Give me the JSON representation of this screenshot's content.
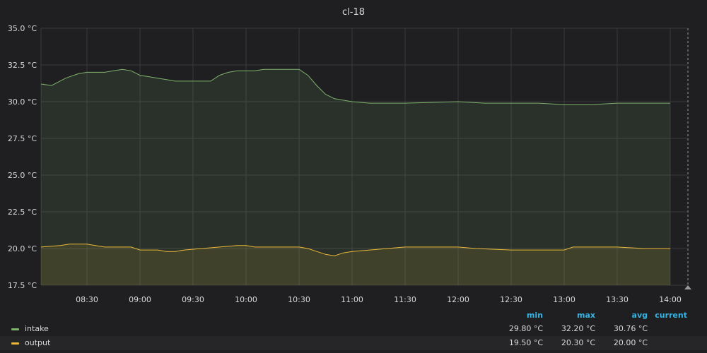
{
  "panel": {
    "title": "cl-18"
  },
  "chart_data": {
    "type": "area",
    "title": "cl-18",
    "xlabel": "",
    "ylabel": "",
    "x_range": [
      "08:04",
      "14:04"
    ],
    "ylim": [
      17.5,
      35.0
    ],
    "y_ticks": [
      "35.0 °C",
      "32.5 °C",
      "30.0 °C",
      "27.5 °C",
      "25.0 °C",
      "22.5 °C",
      "20.0 °C",
      "17.5 °C"
    ],
    "y_tick_values": [
      35.0,
      32.5,
      30.0,
      27.5,
      25.0,
      22.5,
      20.0,
      17.5
    ],
    "x_ticks": [
      "08:30",
      "09:00",
      "09:30",
      "10:00",
      "10:30",
      "11:00",
      "11:30",
      "12:00",
      "12:30",
      "13:00",
      "13:30",
      "14:00"
    ],
    "grid": true,
    "legend_position": "bottom",
    "series": [
      {
        "name": "intake",
        "color": "#7eb26d",
        "points": [
          [
            "08:04",
            31.2
          ],
          [
            "08:10",
            31.1
          ],
          [
            "08:18",
            31.6
          ],
          [
            "08:25",
            31.9
          ],
          [
            "08:30",
            32.0
          ],
          [
            "08:40",
            32.0
          ],
          [
            "08:45",
            32.1
          ],
          [
            "08:50",
            32.2
          ],
          [
            "08:55",
            32.1
          ],
          [
            "09:00",
            31.8
          ],
          [
            "09:05",
            31.7
          ],
          [
            "09:10",
            31.6
          ],
          [
            "09:15",
            31.5
          ],
          [
            "09:20",
            31.4
          ],
          [
            "09:30",
            31.4
          ],
          [
            "09:40",
            31.4
          ],
          [
            "09:45",
            31.8
          ],
          [
            "09:50",
            32.0
          ],
          [
            "09:55",
            32.1
          ],
          [
            "10:00",
            32.1
          ],
          [
            "10:05",
            32.1
          ],
          [
            "10:10",
            32.2
          ],
          [
            "10:20",
            32.2
          ],
          [
            "10:30",
            32.2
          ],
          [
            "10:35",
            31.8
          ],
          [
            "10:40",
            31.1
          ],
          [
            "10:45",
            30.5
          ],
          [
            "10:50",
            30.2
          ],
          [
            "10:55",
            30.1
          ],
          [
            "11:00",
            30.0
          ],
          [
            "11:10",
            29.9
          ],
          [
            "11:30",
            29.9
          ],
          [
            "12:00",
            30.0
          ],
          [
            "12:15",
            29.9
          ],
          [
            "12:30",
            29.9
          ],
          [
            "12:45",
            29.9
          ],
          [
            "13:00",
            29.8
          ],
          [
            "13:15",
            29.8
          ],
          [
            "13:30",
            29.9
          ],
          [
            "13:50",
            29.9
          ],
          [
            "14:00",
            29.9
          ]
        ]
      },
      {
        "name": "output",
        "color": "#eab839",
        "points": [
          [
            "08:04",
            20.1
          ],
          [
            "08:15",
            20.2
          ],
          [
            "08:20",
            20.3
          ],
          [
            "08:30",
            20.3
          ],
          [
            "08:40",
            20.1
          ],
          [
            "08:55",
            20.1
          ],
          [
            "09:00",
            19.9
          ],
          [
            "09:10",
            19.9
          ],
          [
            "09:15",
            19.8
          ],
          [
            "09:20",
            19.8
          ],
          [
            "09:25",
            19.9
          ],
          [
            "09:35",
            20.0
          ],
          [
            "09:45",
            20.1
          ],
          [
            "09:55",
            20.2
          ],
          [
            "10:00",
            20.2
          ],
          [
            "10:05",
            20.1
          ],
          [
            "10:20",
            20.1
          ],
          [
            "10:30",
            20.1
          ],
          [
            "10:35",
            20.0
          ],
          [
            "10:40",
            19.8
          ],
          [
            "10:45",
            19.6
          ],
          [
            "10:50",
            19.5
          ],
          [
            "10:55",
            19.7
          ],
          [
            "11:00",
            19.8
          ],
          [
            "11:10",
            19.9
          ],
          [
            "11:20",
            20.0
          ],
          [
            "11:30",
            20.1
          ],
          [
            "12:00",
            20.1
          ],
          [
            "12:10",
            20.0
          ],
          [
            "12:30",
            19.9
          ],
          [
            "12:45",
            19.9
          ],
          [
            "13:00",
            19.9
          ],
          [
            "13:05",
            20.1
          ],
          [
            "13:30",
            20.1
          ],
          [
            "13:45",
            20.0
          ],
          [
            "14:00",
            20.0
          ]
        ]
      }
    ]
  },
  "legend": {
    "headers": {
      "min": "min",
      "max": "max",
      "avg": "avg",
      "current": "current"
    },
    "rows": [
      {
        "name": "intake",
        "color": "#7eb26d",
        "min": "29.80 °C",
        "max": "32.20 °C",
        "avg": "30.76 °C",
        "current": ""
      },
      {
        "name": "output",
        "color": "#eab839",
        "min": "19.50 °C",
        "max": "20.30 °C",
        "avg": "20.00 °C",
        "current": ""
      }
    ]
  }
}
